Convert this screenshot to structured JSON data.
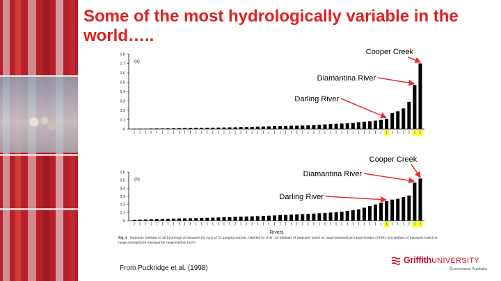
{
  "title": "Some of the most hydrologically variable in the world…..",
  "source": "From Puckridge et al. (1998)",
  "caption": {
    "figno": "Fig. 4",
    "text": "Summary medians of all hydrological measures for each of 52 gauging stations, labelled by river: (a) medians of measures based on range-standardized range/median (S100); (b) medians of measures based on range-standardized interquartile range/median (S10)"
  },
  "logo": {
    "brand": "Griffith",
    "brand_suffix": "UNIVERSITY",
    "sub": "Queensland, Australia"
  },
  "colors": {
    "title": "#e02020",
    "bar": "#000000",
    "highlight": "#ffff33",
    "arrow": "#e03030"
  },
  "chart_data": [
    {
      "type": "bar",
      "panel_label": "(a)",
      "xlabel": "",
      "ylabel": "",
      "ylim": [
        0,
        0.8
      ],
      "yticks": [
        "0",
        "0.1",
        "0.2",
        "0.3",
        "0.4",
        "0.5",
        "0.6",
        "0.7",
        "0.8"
      ],
      "values": [
        0.003,
        0.004,
        0.004,
        0.005,
        0.006,
        0.006,
        0.007,
        0.008,
        0.009,
        0.01,
        0.011,
        0.012,
        0.013,
        0.014,
        0.015,
        0.016,
        0.017,
        0.018,
        0.019,
        0.021,
        0.022,
        0.023,
        0.025,
        0.026,
        0.028,
        0.03,
        0.031,
        0.033,
        0.035,
        0.037,
        0.039,
        0.041,
        0.043,
        0.046,
        0.049,
        0.052,
        0.055,
        0.059,
        0.063,
        0.067,
        0.072,
        0.077,
        0.083,
        0.09,
        0.098,
        0.11,
        0.17,
        0.19,
        0.22,
        0.29,
        0.47,
        0.7
      ],
      "highlight_indices": [
        45,
        50,
        51
      ],
      "annotations": [
        {
          "label": "Cooper Creek",
          "target_index": 51
        },
        {
          "label": "Diamantina River",
          "target_index": 50
        },
        {
          "label": "Darling River",
          "target_index": 45
        }
      ]
    },
    {
      "type": "bar",
      "panel_label": "(b)",
      "xlabel": "Rivers",
      "ylabel": "",
      "ylim": [
        0,
        0.6
      ],
      "yticks": [
        "0",
        "0.1",
        "0.2",
        "0.3",
        "0.4",
        "0.5",
        "0.6"
      ],
      "values": [
        0.01,
        0.012,
        0.014,
        0.016,
        0.018,
        0.02,
        0.022,
        0.024,
        0.026,
        0.028,
        0.03,
        0.032,
        0.034,
        0.036,
        0.038,
        0.04,
        0.042,
        0.044,
        0.046,
        0.048,
        0.05,
        0.053,
        0.056,
        0.059,
        0.062,
        0.065,
        0.068,
        0.071,
        0.074,
        0.077,
        0.08,
        0.083,
        0.087,
        0.091,
        0.095,
        0.1,
        0.105,
        0.11,
        0.12,
        0.13,
        0.14,
        0.16,
        0.18,
        0.2,
        0.22,
        0.24,
        0.26,
        0.27,
        0.29,
        0.31,
        0.47,
        0.52
      ],
      "highlight_indices": [
        45,
        50,
        51
      ],
      "annotations": [
        {
          "label": "Cooper Creek",
          "target_index": 51
        },
        {
          "label": "Diamantina River",
          "target_index": 50
        },
        {
          "label": "Darling River",
          "target_index": 45
        }
      ]
    }
  ]
}
